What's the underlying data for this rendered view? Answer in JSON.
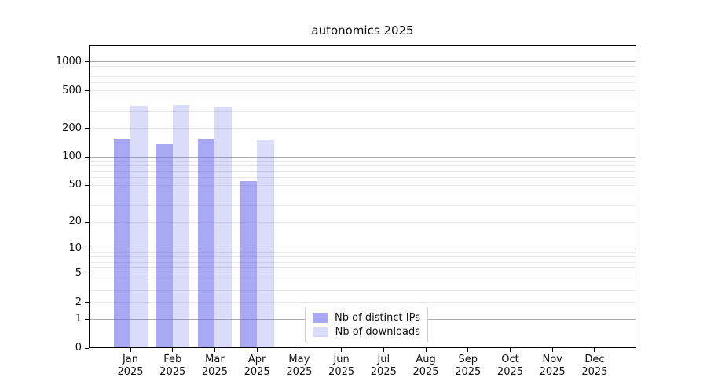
{
  "title": "autonomics 2025",
  "chart_data": {
    "type": "bar",
    "title": "autonomics 2025",
    "categories": [
      "Jan",
      "Feb",
      "Mar",
      "Apr",
      "May",
      "Jun",
      "Jul",
      "Aug",
      "Sep",
      "Oct",
      "Nov",
      "Dec"
    ],
    "category_year": "2025",
    "series": [
      {
        "name": "Nb of distinct IPs",
        "color": "rgba(105,105,235,0.58)",
        "values": [
          157,
          136,
          157,
          55,
          0,
          0,
          0,
          0,
          0,
          0,
          0,
          0
        ]
      },
      {
        "name": "Nb of downloads",
        "color": "rgba(105,105,235,0.24)",
        "values": [
          345,
          355,
          342,
          154,
          0,
          0,
          0,
          0,
          0,
          0,
          0,
          0
        ]
      }
    ],
    "xlabel": "",
    "ylabel": "",
    "y_axis": {
      "scale": "log1p",
      "ticks": [
        0,
        1,
        2,
        5,
        10,
        20,
        50,
        100,
        200,
        500,
        1000
      ],
      "major_grid_ticks": [
        1,
        10,
        100,
        1000
      ],
      "ylim": [
        0,
        1500
      ],
      "grid": "on"
    },
    "legend": {
      "position": "lower-center",
      "entries": [
        "Nb of distinct IPs",
        "Nb of downloads"
      ]
    }
  }
}
